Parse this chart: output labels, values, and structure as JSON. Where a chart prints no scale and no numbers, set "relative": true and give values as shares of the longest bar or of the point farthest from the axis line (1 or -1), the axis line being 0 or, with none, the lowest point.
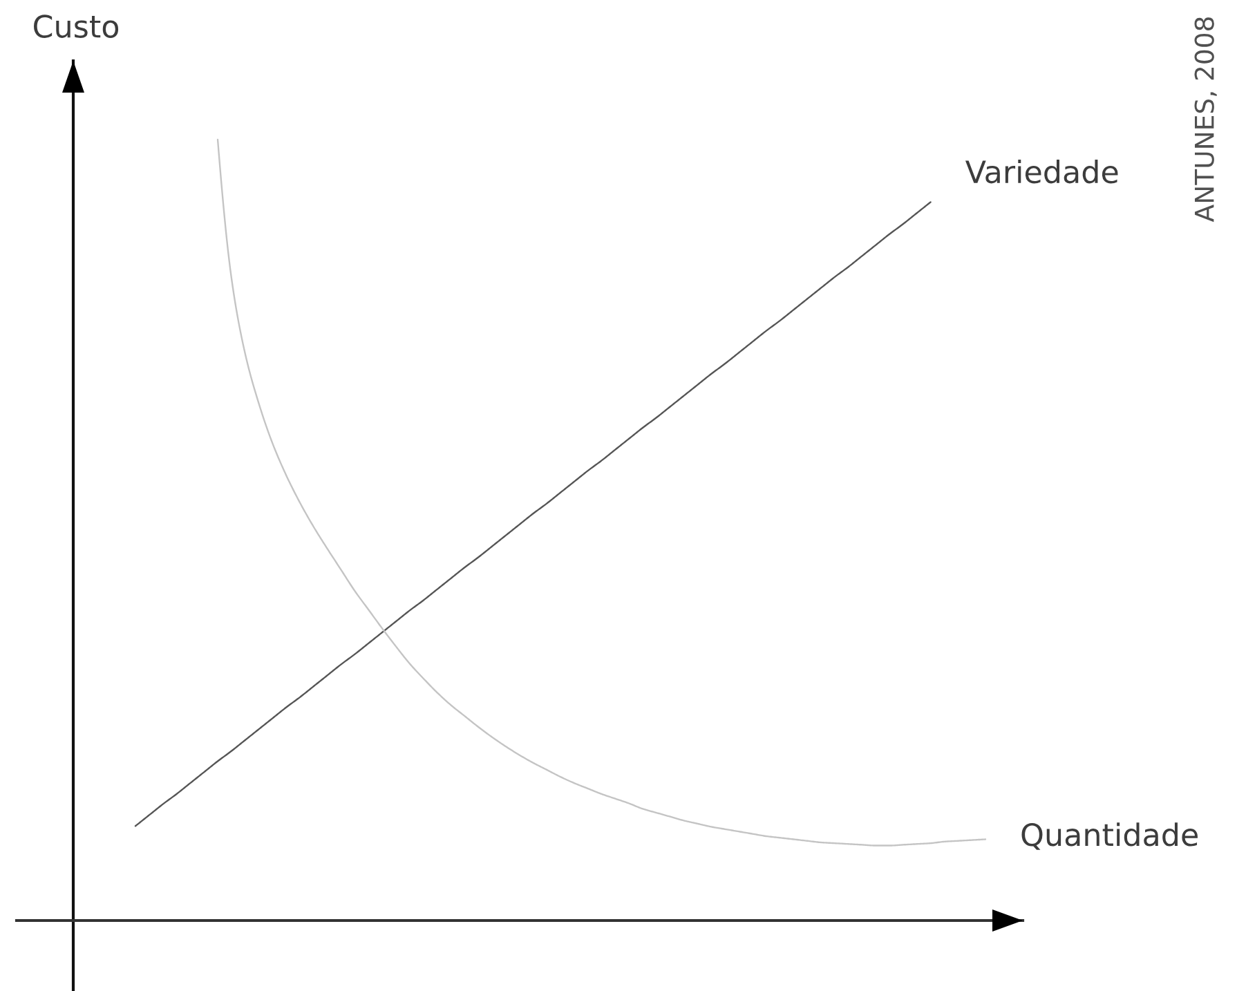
{
  "chart_data": {
    "type": "line",
    "ylabel": "Custo",
    "annotations": [
      "ANTUNES, 2008"
    ],
    "relative": true,
    "categories": [
      null,
      null,
      null,
      null,
      null,
      null,
      null,
      null,
      null,
      null,
      null,
      null,
      null,
      null,
      null,
      null,
      null,
      null,
      null,
      null,
      null,
      null,
      null,
      null,
      null,
      null,
      null,
      null,
      null,
      null,
      null,
      null,
      null,
      null,
      null,
      null,
      null,
      null,
      null,
      null,
      null,
      null,
      null,
      null,
      null,
      null,
      null,
      null,
      null,
      null,
      null,
      null,
      null,
      null,
      null,
      null,
      null,
      null,
      null,
      null,
      null,
      null,
      null
    ],
    "series": [
      {
        "name": "Variedade",
        "color": "#555555",
        "values": [
          0.121,
          0.135,
          0.149,
          0.162,
          0.176,
          0.19,
          0.204,
          0.217,
          0.231,
          0.245,
          0.259,
          0.273,
          0.286,
          0.3,
          0.314,
          0.328,
          0.341,
          0.355,
          0.369,
          0.383,
          0.397,
          0.41,
          0.424,
          0.438,
          0.452,
          0.465,
          0.479,
          0.493,
          0.507,
          0.521,
          0.534,
          0.548,
          0.562,
          0.576,
          0.589,
          0.603,
          0.617,
          0.631,
          0.644,
          0.658,
          0.672,
          0.686,
          0.7,
          0.713,
          0.727,
          0.741,
          0.755,
          0.768,
          0.782,
          0.796,
          0.81,
          0.824,
          0.837,
          0.851,
          0.865,
          0.879,
          0.892,
          0.906,
          0.92,
          null,
          null,
          null,
          null
        ]
      },
      {
        "name": "Quantidade",
        "color": "#c4c4c4",
        "values": [
          null,
          null,
          null,
          null,
          null,
          null,
          1.0,
          0.823,
          0.726,
          0.662,
          0.611,
          0.57,
          0.535,
          0.504,
          0.476,
          0.449,
          0.422,
          0.398,
          0.374,
          0.351,
          0.329,
          0.31,
          0.292,
          0.276,
          0.262,
          0.248,
          0.235,
          0.223,
          0.212,
          0.202,
          0.193,
          0.184,
          0.176,
          0.169,
          0.162,
          0.156,
          0.15,
          0.143,
          0.138,
          0.133,
          0.128,
          0.124,
          0.12,
          0.117,
          0.114,
          0.111,
          0.108,
          0.106,
          0.104,
          0.102,
          0.1,
          0.099,
          0.098,
          0.097,
          0.096,
          0.096,
          0.097,
          0.098,
          0.099,
          0.101,
          0.102,
          0.103,
          0.104
        ]
      }
    ]
  }
}
